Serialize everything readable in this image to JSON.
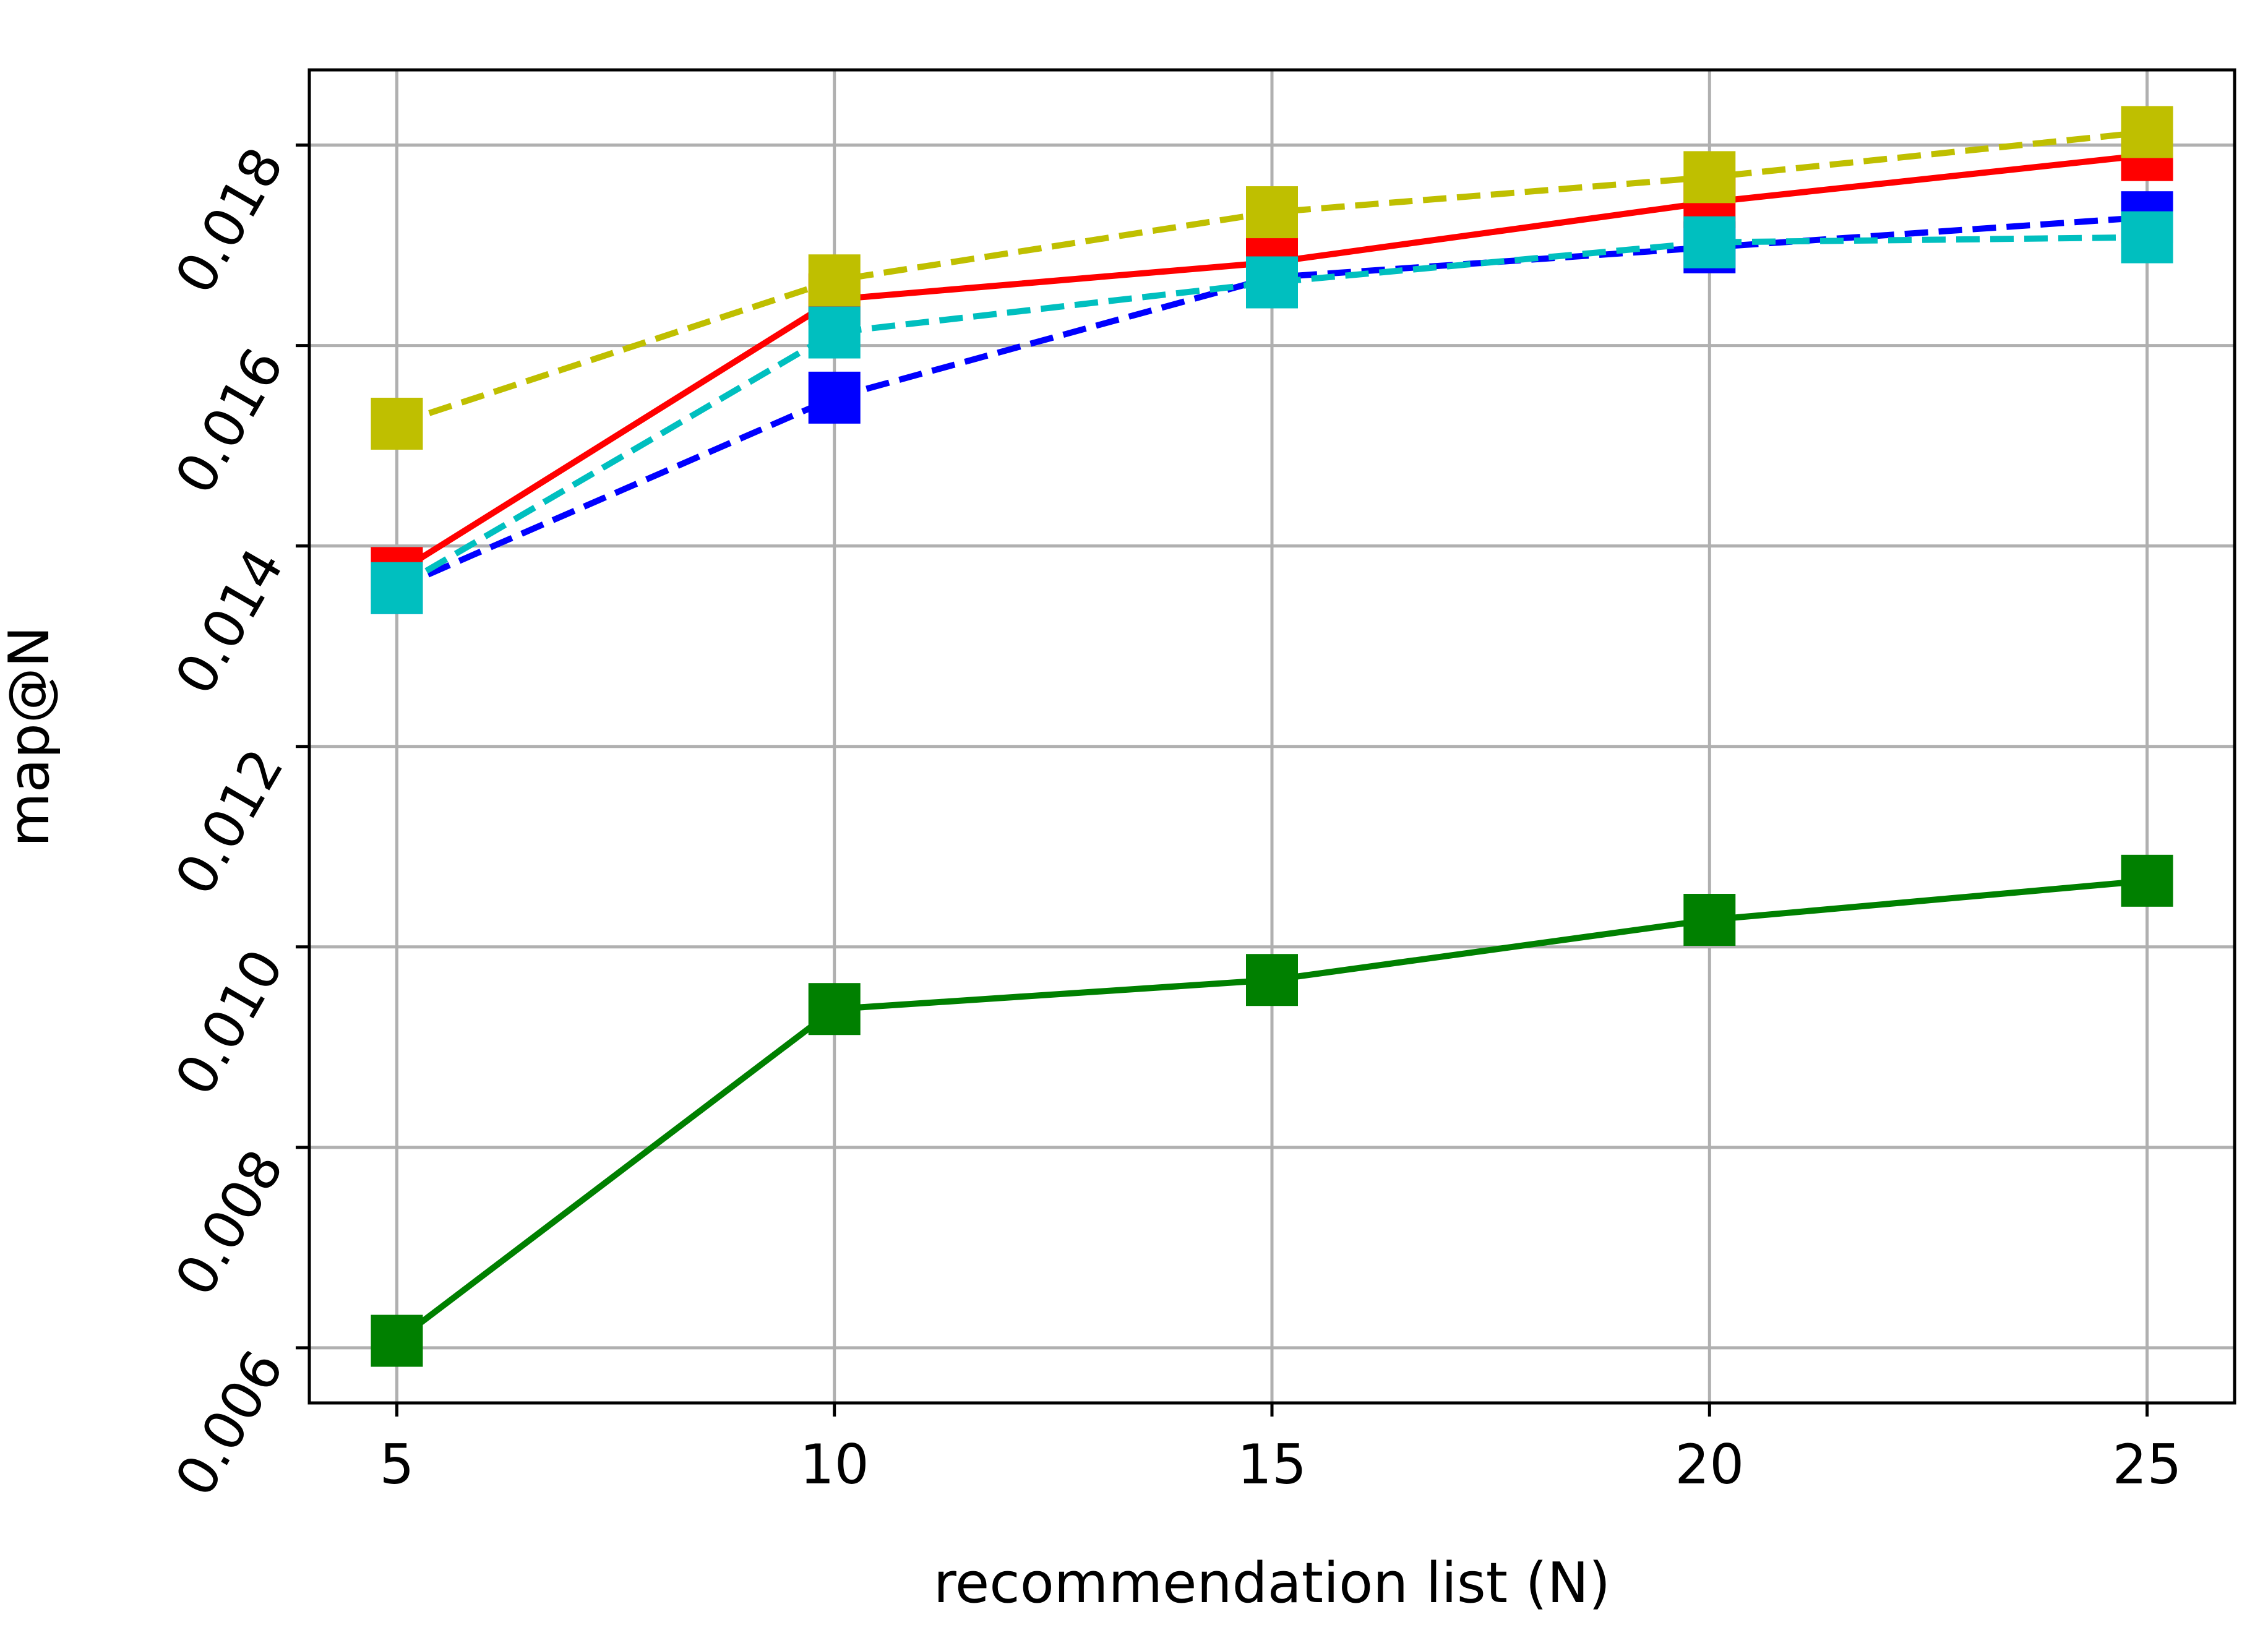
{
  "chart_data": {
    "type": "line",
    "title": "",
    "xlabel": "recommendation list (N)",
    "ylabel": "map@N",
    "x": [
      5,
      10,
      15,
      20,
      25
    ],
    "xlim": [
      4,
      26
    ],
    "ylim": [
      0.00545,
      0.01875
    ],
    "xticks": [
      5,
      10,
      15,
      20,
      25
    ],
    "yticks": [
      0.006,
      0.008,
      0.01,
      0.012,
      0.014,
      0.016,
      0.018
    ],
    "ytick_labels": [
      "0.006",
      "0.008",
      "0.010",
      "0.012",
      "0.014",
      "0.016",
      "0.018"
    ],
    "ytick_rotation_deg": 60,
    "grid": true,
    "legend": "none",
    "marker": "square",
    "series": [
      {
        "color": "#008000",
        "linestyle": "solid",
        "values": [
          0.00607,
          0.00938,
          0.00967,
          0.01027,
          0.01066
        ]
      },
      {
        "color": "#0000ff",
        "linestyle": "dashed",
        "values": [
          0.01358,
          0.01548,
          0.01668,
          0.01698,
          0.01728
        ]
      },
      {
        "color": "#ff0000",
        "linestyle": "solid",
        "values": [
          0.01373,
          0.01646,
          0.01683,
          0.01743,
          0.0179
        ]
      },
      {
        "color": "#00bfbf",
        "linestyle": "dashed",
        "values": [
          0.01358,
          0.01613,
          0.01663,
          0.01703,
          0.01708
        ]
      },
      {
        "color": "#bfbf00",
        "linestyle": "dashed",
        "values": [
          0.01522,
          0.01665,
          0.01733,
          0.01768,
          0.01813
        ]
      }
    ]
  }
}
